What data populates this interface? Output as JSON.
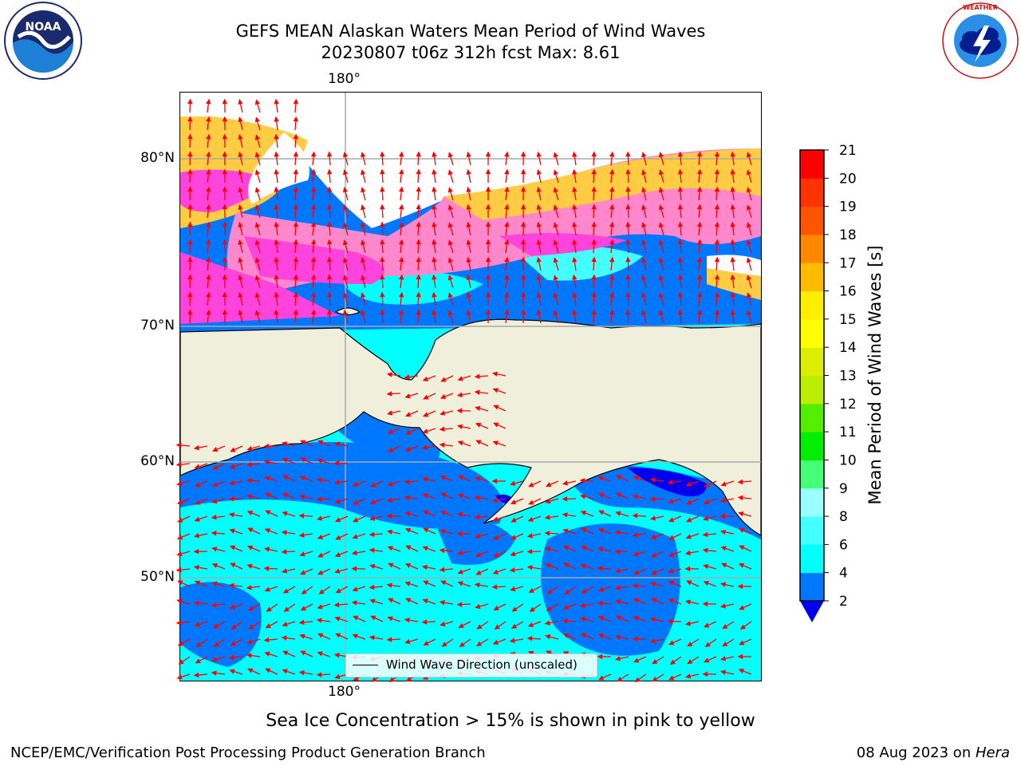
{
  "header": {
    "title_line1": "GEFS MEAN Alaskan Waters Mean Period of Wind Waves",
    "title_line2": "20230807 t06z 312h fcst   Max: 8.61"
  },
  "logos": {
    "left": "NOAA",
    "left_ring": "NATIONAL OCEANIC AND ATMOSPHERIC ADMINISTRATION · U.S. DEPARTMENT OF COMMERCE",
    "right_ring": "NATIONAL WEATHER SERVICE"
  },
  "map": {
    "lon_label_top": "180°",
    "lon_label_bottom": "180°",
    "lat_labels": [
      "80°N",
      "70°N",
      "60°N",
      "50°N"
    ],
    "legend_label": "Wind Wave Direction (unscaled)",
    "colors": {
      "land": "#efefdc",
      "sea_ice": [
        "#ff44dd",
        "#ff88cc",
        "#ffcc44",
        "#ffdd33"
      ],
      "arrows": "#ff0000"
    }
  },
  "colorbar": {
    "label": "Mean Period of Wind Waves [s]",
    "ticks": [
      2,
      4,
      6,
      8,
      9,
      10,
      11,
      12,
      13,
      14,
      15,
      16,
      17,
      18,
      19,
      20,
      21
    ],
    "colors": [
      "#0000ee",
      "#0077ff",
      "#00ffff",
      "#44ffff",
      "#99ffff",
      "#44ff77",
      "#00ee00",
      "#55ee00",
      "#bbee00",
      "#ddee00",
      "#ffff00",
      "#ffee00",
      "#ffbb00",
      "#ff8800",
      "#ff5500",
      "#ff3300",
      "#ff0000"
    ],
    "extend_color": "#0000ee"
  },
  "caption": "Sea Ice Concentration > 15% is shown in pink to yellow",
  "footer": {
    "left": "NCEP/EMC/Verification Post Processing Product Generation Branch",
    "right_date": "08 Aug 2023 on ",
    "right_host": "Hera"
  }
}
